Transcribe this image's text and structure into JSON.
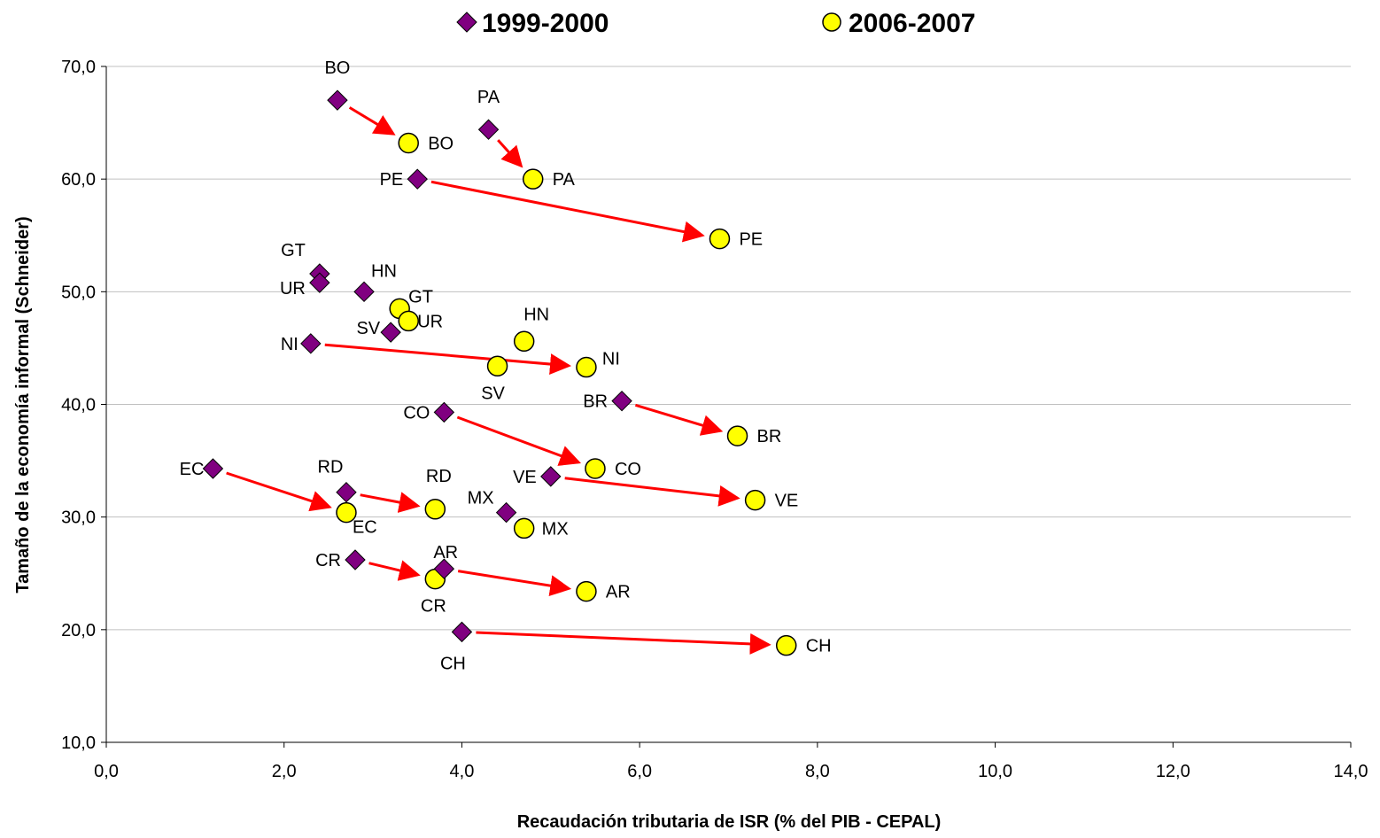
{
  "chart_data": {
    "type": "scatter",
    "xlabel": "Recaudación tributaria de ISR (% del PIB - CEPAL)",
    "ylabel": "Tamaño de la economía informal (Schneider)",
    "xlim": [
      0,
      14
    ],
    "ylim": [
      10,
      70
    ],
    "x_ticks": [
      "0,0",
      "2,0",
      "4,0",
      "6,0",
      "8,0",
      "10,0",
      "12,0",
      "14,0"
    ],
    "y_ticks": [
      "10,0",
      "20,0",
      "30,0",
      "40,0",
      "50,0",
      "60,0",
      "70,0"
    ],
    "grid": "horizontal",
    "legend_position": "top",
    "colors": {
      "series1": "#800080",
      "series2": "#ffff00",
      "arrow": "#ff0000",
      "grid": "#c0c0c0"
    },
    "series": [
      {
        "name": "1999-2000",
        "marker": "diamond",
        "points": [
          {
            "label": "BO",
            "x": 2.6,
            "y": 67.0
          },
          {
            "label": "PA",
            "x": 4.3,
            "y": 64.4
          },
          {
            "label": "PE",
            "x": 3.5,
            "y": 60.0
          },
          {
            "label": "GT",
            "x": 2.4,
            "y": 51.6
          },
          {
            "label": "UR",
            "x": 2.4,
            "y": 50.8
          },
          {
            "label": "HN",
            "x": 2.9,
            "y": 50.0
          },
          {
            "label": "SV",
            "x": 3.2,
            "y": 46.4
          },
          {
            "label": "NI",
            "x": 2.3,
            "y": 45.4
          },
          {
            "label": "BR",
            "x": 5.8,
            "y": 40.3
          },
          {
            "label": "CO",
            "x": 3.8,
            "y": 39.3
          },
          {
            "label": "EC",
            "x": 1.2,
            "y": 34.3
          },
          {
            "label": "RD",
            "x": 2.7,
            "y": 32.2
          },
          {
            "label": "VE",
            "x": 5.0,
            "y": 33.6
          },
          {
            "label": "MX",
            "x": 4.5,
            "y": 30.4
          },
          {
            "label": "CR",
            "x": 2.8,
            "y": 26.2
          },
          {
            "label": "AR",
            "x": 3.8,
            "y": 25.4
          },
          {
            "label": "CH",
            "x": 4.0,
            "y": 19.8
          }
        ]
      },
      {
        "name": "2006-2007",
        "marker": "circle",
        "points": [
          {
            "label": "BO",
            "x": 3.4,
            "y": 63.2
          },
          {
            "label": "PA",
            "x": 4.8,
            "y": 60.0
          },
          {
            "label": "PE",
            "x": 6.9,
            "y": 54.7
          },
          {
            "label": "GT",
            "x": 3.3,
            "y": 48.5
          },
          {
            "label": "UR",
            "x": 3.4,
            "y": 47.4
          },
          {
            "label": "HN",
            "x": 4.7,
            "y": 45.6
          },
          {
            "label": "SV",
            "x": 4.4,
            "y": 43.4
          },
          {
            "label": "NI",
            "x": 5.4,
            "y": 43.3
          },
          {
            "label": "BR",
            "x": 7.1,
            "y": 37.2
          },
          {
            "label": "CO",
            "x": 5.5,
            "y": 34.3
          },
          {
            "label": "EC",
            "x": 2.7,
            "y": 30.4
          },
          {
            "label": "RD",
            "x": 3.7,
            "y": 30.7
          },
          {
            "label": "VE",
            "x": 7.3,
            "y": 31.5
          },
          {
            "label": "MX",
            "x": 4.7,
            "y": 29.0
          },
          {
            "label": "CR",
            "x": 3.7,
            "y": 24.5
          },
          {
            "label": "AR",
            "x": 5.4,
            "y": 23.4
          },
          {
            "label": "CH",
            "x": 7.65,
            "y": 18.6
          }
        ]
      }
    ],
    "arrows": [
      {
        "label": "BO",
        "from": [
          2.6,
          67.0
        ],
        "to": [
          3.4,
          63.2
        ]
      },
      {
        "label": "PA",
        "from": [
          4.3,
          64.4
        ],
        "to": [
          4.8,
          60.0
        ]
      },
      {
        "label": "PE",
        "from": [
          3.5,
          60.0
        ],
        "to": [
          6.9,
          54.7
        ]
      },
      {
        "label": "NI",
        "from": [
          2.3,
          45.4
        ],
        "to": [
          5.4,
          43.3
        ]
      },
      {
        "label": "BR",
        "from": [
          5.8,
          40.3
        ],
        "to": [
          7.1,
          37.2
        ]
      },
      {
        "label": "CO",
        "from": [
          3.8,
          39.3
        ],
        "to": [
          5.5,
          34.3
        ]
      },
      {
        "label": "EC",
        "from": [
          1.2,
          34.3
        ],
        "to": [
          2.7,
          30.4
        ]
      },
      {
        "label": "RD",
        "from": [
          2.7,
          32.2
        ],
        "to": [
          3.7,
          30.7
        ]
      },
      {
        "label": "VE",
        "from": [
          5.0,
          33.6
        ],
        "to": [
          7.3,
          31.5
        ]
      },
      {
        "label": "CR",
        "from": [
          2.8,
          26.2
        ],
        "to": [
          3.7,
          24.5
        ]
      },
      {
        "label": "AR",
        "from": [
          3.8,
          25.4
        ],
        "to": [
          5.4,
          23.4
        ]
      },
      {
        "label": "CH",
        "from": [
          4.0,
          19.8
        ],
        "to": [
          7.65,
          18.6
        ]
      }
    ]
  }
}
